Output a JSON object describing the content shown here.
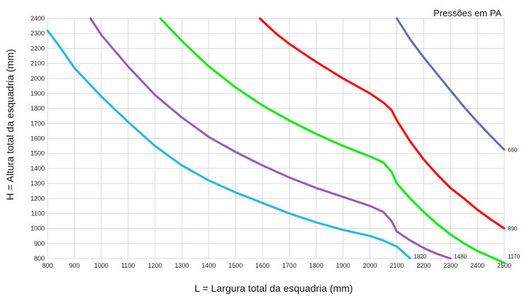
{
  "chart_data": {
    "type": "line",
    "title": "",
    "annotation": "Pressões em PA",
    "xlabel": "L = Largura total da esquadria (mm)",
    "ylabel": "H = Altura total da esquadria (mm)",
    "xlim": [
      800,
      2500
    ],
    "ylim": [
      800,
      2400
    ],
    "xticks": [
      800,
      900,
      1000,
      1100,
      1200,
      1300,
      1400,
      1500,
      1600,
      1700,
      1800,
      1900,
      2000,
      2100,
      2200,
      2300,
      2400,
      2500
    ],
    "yticks": [
      800,
      900,
      1000,
      1100,
      1200,
      1300,
      1400,
      1500,
      1600,
      1700,
      1800,
      1900,
      2000,
      2100,
      2200,
      2300,
      2400
    ],
    "grid": true,
    "series": [
      {
        "name": "660",
        "color": "#5b6fbf",
        "x": [
          2100,
          2150,
          2200,
          2250,
          2300,
          2350,
          2400,
          2450,
          2500
        ],
        "y": [
          2400,
          2260,
          2140,
          2030,
          1920,
          1810,
          1710,
          1615,
          1525
        ]
      },
      {
        "name": "890",
        "color": "#ff0000",
        "x": [
          1590,
          1650,
          1700,
          1750,
          1800,
          1850,
          1900,
          1950,
          2000,
          2050,
          2080,
          2100,
          2150,
          2200,
          2250,
          2300,
          2350,
          2400,
          2450,
          2500
        ],
        "y": [
          2400,
          2300,
          2230,
          2170,
          2110,
          2055,
          2000,
          1950,
          1900,
          1840,
          1790,
          1720,
          1580,
          1460,
          1360,
          1270,
          1200,
          1125,
          1060,
          1000
        ]
      },
      {
        "name": "1170",
        "color": "#00ee00",
        "x": [
          1220,
          1300,
          1400,
          1500,
          1600,
          1700,
          1800,
          1900,
          2000,
          2050,
          2080,
          2100,
          2150,
          2200,
          2250,
          2300,
          2350,
          2400,
          2450,
          2500
        ],
        "y": [
          2400,
          2250,
          2080,
          1940,
          1820,
          1720,
          1630,
          1550,
          1480,
          1440,
          1380,
          1300,
          1200,
          1110,
          1030,
          960,
          900,
          850,
          810,
          770
        ]
      },
      {
        "name": "1480",
        "color": "#9b59b6",
        "x": [
          960,
          1000,
          1100,
          1200,
          1300,
          1400,
          1500,
          1600,
          1700,
          1800,
          1900,
          2000,
          2050,
          2080,
          2100,
          2150,
          2200,
          2250,
          2300
        ],
        "y": [
          2400,
          2290,
          2080,
          1890,
          1740,
          1610,
          1510,
          1420,
          1340,
          1270,
          1210,
          1150,
          1110,
          1050,
          980,
          920,
          870,
          830,
          800
        ]
      },
      {
        "name": "1820",
        "color": "#1fb8ea",
        "x": [
          800,
          850,
          900,
          1000,
          1100,
          1200,
          1300,
          1400,
          1500,
          1600,
          1700,
          1800,
          1900,
          2000,
          2050,
          2100,
          2150
        ],
        "y": [
          2320,
          2200,
          2070,
          1880,
          1710,
          1550,
          1420,
          1320,
          1240,
          1170,
          1100,
          1040,
          990,
          950,
          920,
          880,
          800
        ]
      }
    ]
  }
}
